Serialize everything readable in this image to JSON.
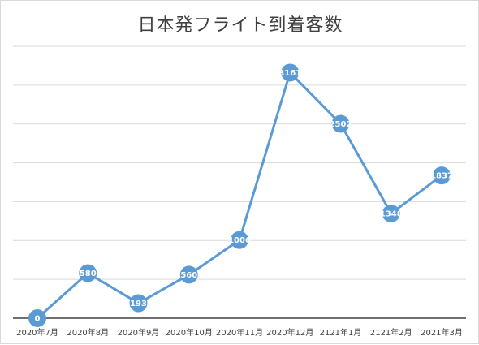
{
  "chart_data": {
    "type": "line",
    "title": "日本発フライト到着客数",
    "xlabel": "",
    "ylabel": "",
    "categories": [
      "2020年7月",
      "2020年8月",
      "2020年9月",
      "2020年10月",
      "2020年11月",
      "2020年12月",
      "2121年1月",
      "2121年2月",
      "2021年3月"
    ],
    "series": [
      {
        "values": [
          0,
          580,
          193,
          560,
          1006,
          3161,
          2502,
          1348,
          1837
        ]
      }
    ],
    "ylim": [
      0,
      3500
    ],
    "ytick_step": 500,
    "grid": true,
    "legend": "none",
    "data_labels": true,
    "colors": {
      "line": "#5b9bd5",
      "grid": "#d9d9d9",
      "axis": "#404040",
      "label_text": "#ffffff"
    }
  }
}
